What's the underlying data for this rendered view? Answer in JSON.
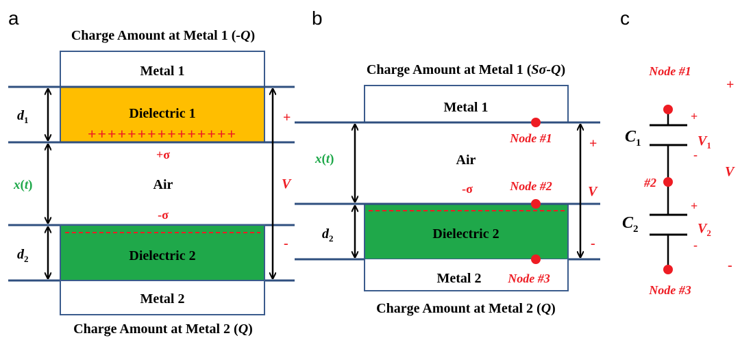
{
  "panel_a": {
    "letter": "a",
    "top_caption": {
      "prefix": "Charge Amount at Metal 1 (",
      "italic": "-Q",
      "suffix": ")"
    },
    "metal1": "Metal 1",
    "dielectric1": "Dielectric 1",
    "plus_row": "+++++++++++++++",
    "plus_sigma": "+σ",
    "minus_sigma": "-σ",
    "gap_label": {
      "text": "x(",
      "var": "t",
      "close": ")"
    },
    "air": "Air",
    "dielectric2": "Dielectric 2",
    "metal2": "Metal 2",
    "bottom_caption": {
      "prefix": "Charge Amount at Metal 2 (",
      "italic": "Q",
      "suffix": ")"
    },
    "d1": {
      "var": "d",
      "sub": "1"
    },
    "d2": {
      "var": "d",
      "sub": "2"
    },
    "plus": "+",
    "V": "V",
    "minus": "-"
  },
  "panel_b": {
    "letter": "b",
    "top_caption": {
      "prefix": "Charge Amount at Metal 1 (",
      "italic": "Sσ-Q",
      "suffix": ")"
    },
    "metal1": "Metal 1",
    "node1": "Node #1",
    "gap_label": {
      "text": "x(",
      "var": "t",
      "close": ")"
    },
    "air": "Air",
    "minus_sigma": "-σ",
    "node2": "Node #2",
    "d2": {
      "var": "d",
      "sub": "2"
    },
    "dielectric2": "Dielectric 2",
    "metal2": "Metal 2",
    "node3": "Node #3",
    "bottom_caption": {
      "prefix": "Charge Amount at Metal 2 (",
      "italic": "Q",
      "suffix": ")"
    },
    "plus": "+",
    "V": "V",
    "minus": "-"
  },
  "panel_c": {
    "letter": "c",
    "node1": "Node #1",
    "node2": "#2",
    "node3": "Node #3",
    "c1": {
      "var": "C",
      "sub": "1"
    },
    "c2": {
      "var": "C",
      "sub": "2"
    },
    "v1": {
      "var": "V",
      "sub": "1"
    },
    "v2": {
      "var": "V",
      "sub": "2"
    },
    "plus": "+",
    "minus": "-",
    "V": "V"
  },
  "colors": {
    "dielectric1": "#ffbe00",
    "dielectric2": "#1fa84a",
    "accent_red": "#ee1c23",
    "label_green": "#1fa84a",
    "plate_line": "#2f4f7f"
  }
}
